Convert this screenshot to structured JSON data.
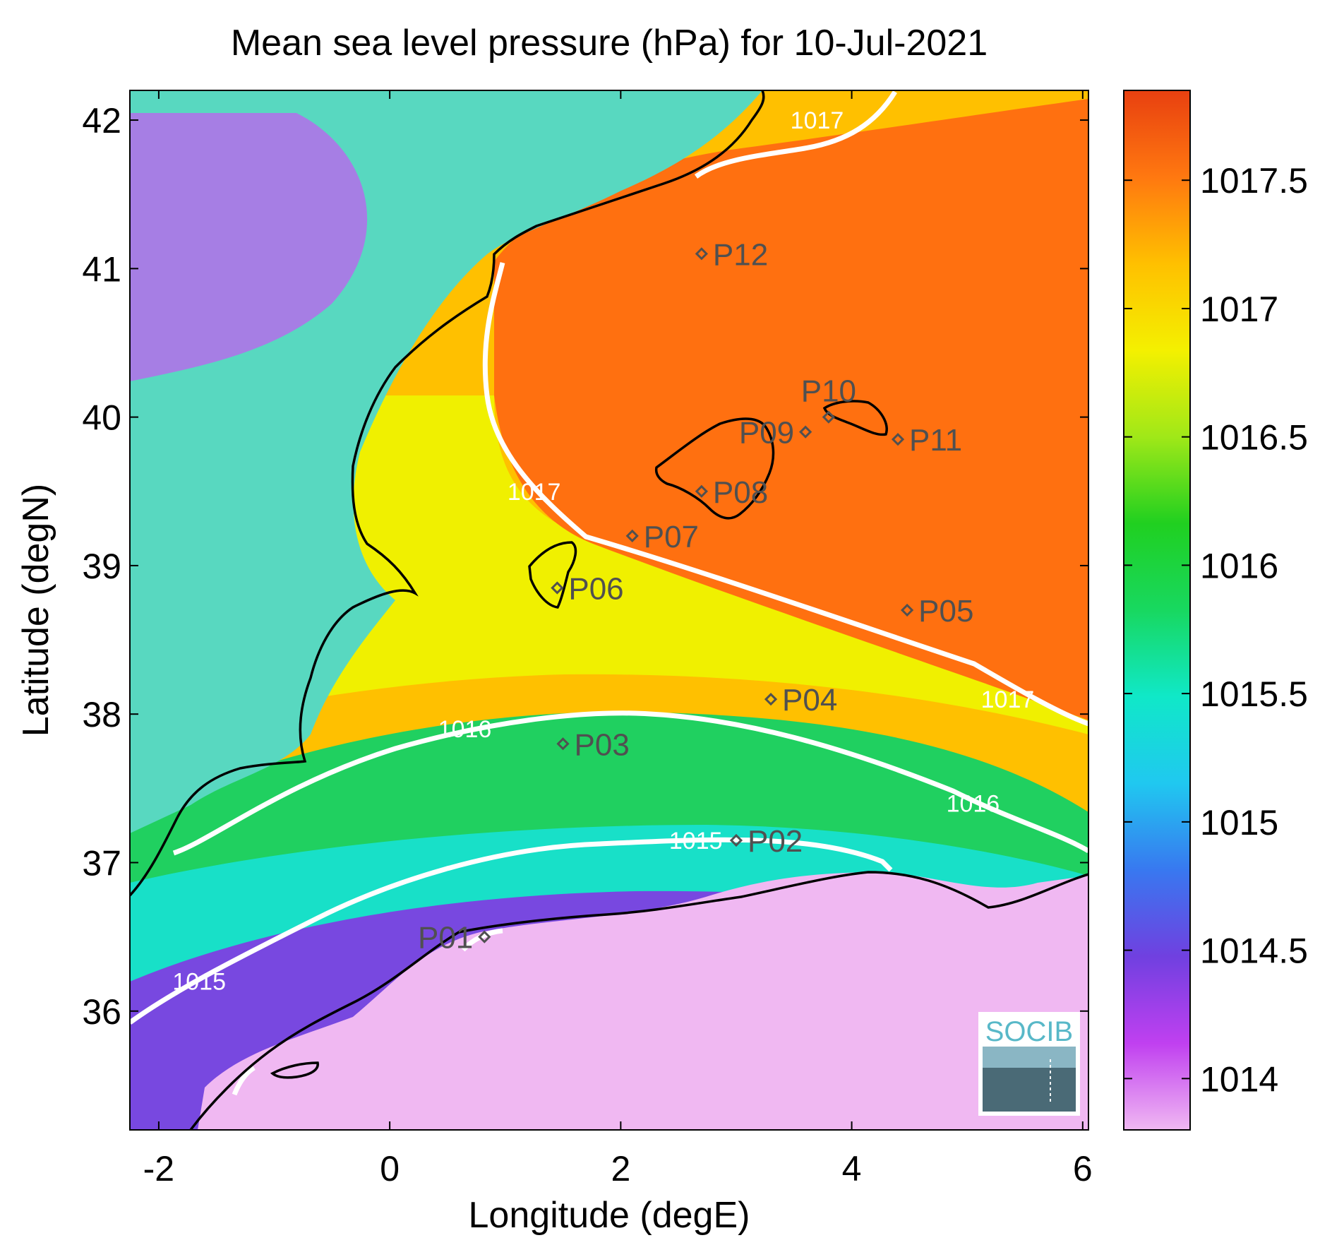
{
  "title": "Mean sea level pressure (hPa) for 10-Jul-2021",
  "x_axis": {
    "label": "Longitude (degE)",
    "range": [
      -2.25,
      6.05
    ],
    "ticks": [
      {
        "value": -2,
        "label": "-2"
      },
      {
        "value": 0,
        "label": "0"
      },
      {
        "value": 2,
        "label": "2"
      },
      {
        "value": 4,
        "label": "4"
      },
      {
        "value": 6,
        "label": "6"
      }
    ]
  },
  "y_axis": {
    "label": "Latitude (degN)",
    "range": [
      35.2,
      42.2
    ],
    "ticks": [
      {
        "value": 36,
        "label": "36"
      },
      {
        "value": 37,
        "label": "37"
      },
      {
        "value": 38,
        "label": "38"
      },
      {
        "value": 39,
        "label": "39"
      },
      {
        "value": 40,
        "label": "40"
      },
      {
        "value": 41,
        "label": "41"
      },
      {
        "value": 42,
        "label": "42"
      }
    ]
  },
  "colorbar": {
    "range": [
      1013.8,
      1017.85
    ],
    "ticks": [
      {
        "value": 1014,
        "label": "1014"
      },
      {
        "value": 1014.5,
        "label": "1014.5"
      },
      {
        "value": 1015,
        "label": "1015"
      },
      {
        "value": 1015.5,
        "label": "1015.5"
      },
      {
        "value": 1016,
        "label": "1016"
      },
      {
        "value": 1016.5,
        "label": "1016.5"
      },
      {
        "value": 1017,
        "label": "1017"
      },
      {
        "value": 1017.5,
        "label": "1017.5"
      }
    ],
    "colormap": [
      "#f0b8f2",
      "#c040f0",
      "#7040e0",
      "#3878f0",
      "#20c8f0",
      "#10e8c8",
      "#18d860",
      "#20d020",
      "#a0e818",
      "#f4f000",
      "#ffc000",
      "#ff7810",
      "#e84010"
    ]
  },
  "contour_labels": [
    {
      "text": "1017",
      "lon": 3.7,
      "lat": 42.0
    },
    {
      "text": "1017",
      "lon": 1.25,
      "lat": 39.5
    },
    {
      "text": "1017",
      "lon": 5.35,
      "lat": 38.1
    },
    {
      "text": "1016",
      "lon": 0.65,
      "lat": 37.9
    },
    {
      "text": "1016",
      "lon": 5.05,
      "lat": 37.4
    },
    {
      "text": "1015",
      "lon": 2.65,
      "lat": 37.15
    },
    {
      "text": "1015",
      "lon": -1.65,
      "lat": 36.2
    }
  ],
  "stations": [
    {
      "name": "P01",
      "lon": 0.82,
      "lat": 36.5,
      "label_side": "left"
    },
    {
      "name": "P02",
      "lon": 3.0,
      "lat": 37.15,
      "label_side": "right"
    },
    {
      "name": "P03",
      "lon": 1.5,
      "lat": 37.8,
      "label_side": "right"
    },
    {
      "name": "P04",
      "lon": 3.3,
      "lat": 38.1,
      "label_side": "right"
    },
    {
      "name": "P05",
      "lon": 4.48,
      "lat": 38.7,
      "label_side": "right"
    },
    {
      "name": "P06",
      "lon": 1.45,
      "lat": 38.85,
      "label_side": "right"
    },
    {
      "name": "P07",
      "lon": 2.1,
      "lat": 39.2,
      "label_side": "right"
    },
    {
      "name": "P08",
      "lon": 2.7,
      "lat": 39.5,
      "label_side": "right"
    },
    {
      "name": "P09",
      "lon": 3.6,
      "lat": 39.9,
      "label_side": "left"
    },
    {
      "name": "P10",
      "lon": 3.8,
      "lat": 40.0,
      "label_side": "above"
    },
    {
      "name": "P11",
      "lon": 4.4,
      "lat": 39.85,
      "label_side": "right"
    },
    {
      "name": "P12",
      "lon": 2.7,
      "lat": 41.1,
      "label_side": "right"
    }
  ],
  "logo": {
    "text": "SOCIB"
  }
}
